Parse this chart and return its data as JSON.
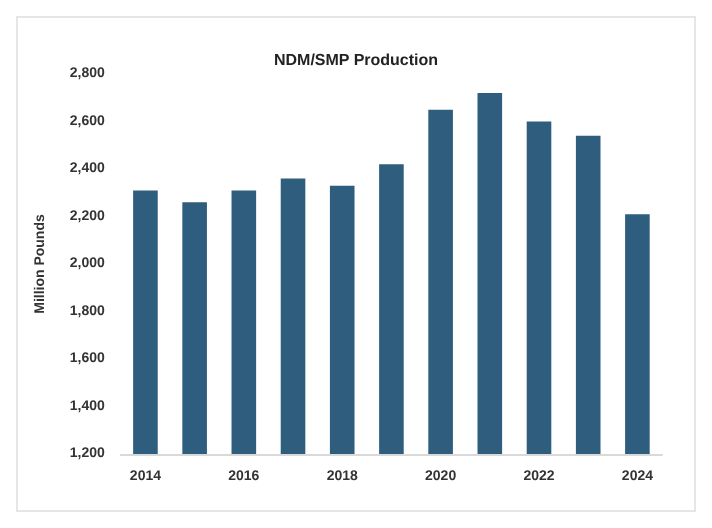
{
  "chart_data": {
    "type": "bar",
    "title": "NDM/SMP Production",
    "ylabel": "Million Pounds",
    "categories": [
      "2014",
      null,
      "2016",
      null,
      "2018",
      null,
      "2020",
      null,
      "2022",
      null,
      "2024"
    ],
    "values": [
      2310,
      2260,
      2310,
      2360,
      2330,
      2420,
      2650,
      2720,
      2600,
      2540,
      2210
    ],
    "color": "#2e5d7d",
    "ylim": [
      1200,
      2800
    ],
    "yticks": [
      {
        "value": 1200,
        "label": "1,200"
      },
      {
        "value": 1400,
        "label": "1,400"
      },
      {
        "value": 1600,
        "label": "1,600"
      },
      {
        "value": 1800,
        "label": "1,800"
      },
      {
        "value": 2000,
        "label": "2,000"
      },
      {
        "value": 2200,
        "label": "2,200"
      },
      {
        "value": 2400,
        "label": "2,400"
      },
      {
        "value": 2600,
        "label": "2,600"
      },
      {
        "value": 2800,
        "label": "2,800"
      }
    ],
    "grid": false
  }
}
